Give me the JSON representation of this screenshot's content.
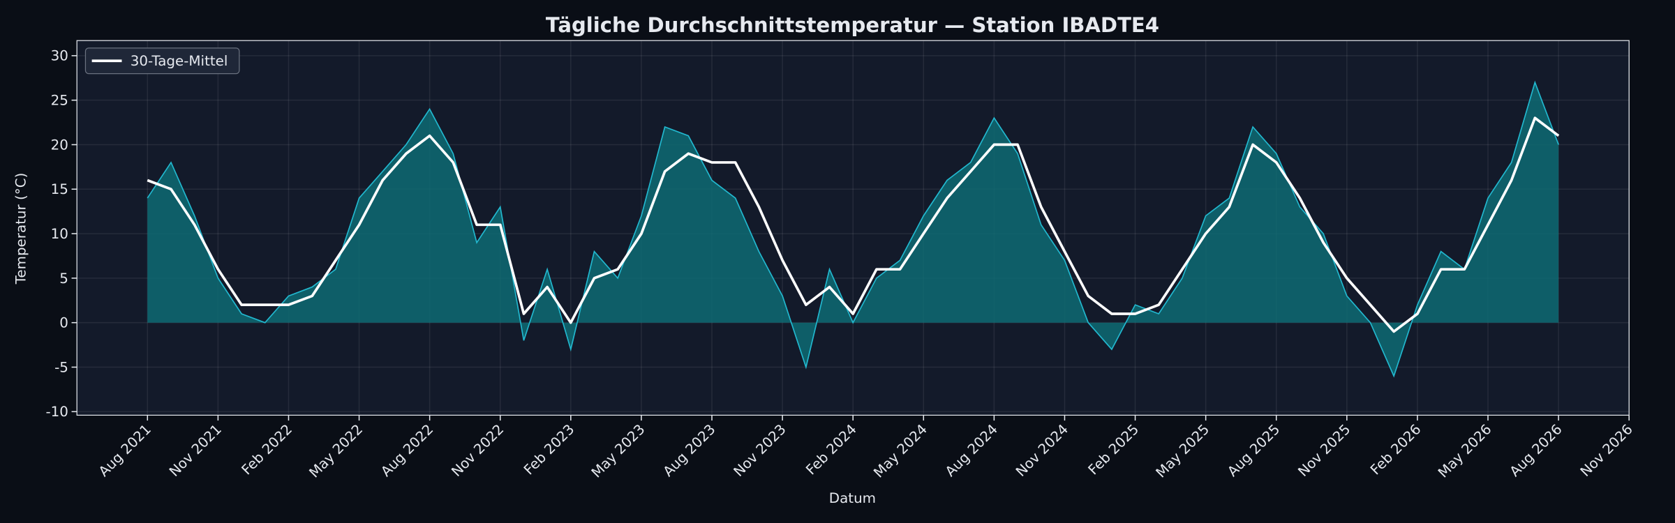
{
  "chart_data": {
    "type": "line",
    "title": "Tägliche Durchschnittstemperatur — Station IBADTE4",
    "xlabel": "Datum",
    "ylabel": "Temperatur (°C)",
    "x": [
      "2021-08",
      "2021-09",
      "2021-10",
      "2021-11",
      "2021-12",
      "2022-01",
      "2022-02",
      "2022-03",
      "2022-04",
      "2022-05",
      "2022-06",
      "2022-07",
      "2022-08",
      "2022-09",
      "2022-10",
      "2022-11",
      "2022-12",
      "2023-01",
      "2023-02",
      "2023-03",
      "2023-04",
      "2023-05",
      "2023-06",
      "2023-07",
      "2023-08",
      "2023-09",
      "2023-10",
      "2023-11",
      "2023-12",
      "2024-01",
      "2024-02",
      "2024-03",
      "2024-04",
      "2024-05",
      "2024-06",
      "2024-07",
      "2024-08",
      "2024-09",
      "2024-10",
      "2024-11",
      "2024-12",
      "2025-01",
      "2025-02",
      "2025-03",
      "2025-04",
      "2025-05",
      "2025-06",
      "2025-07",
      "2025-08",
      "2025-09",
      "2025-10",
      "2025-11",
      "2025-12",
      "2026-01",
      "2026-02",
      "2026-03",
      "2026-04",
      "2026-05",
      "2026-06",
      "2026-07",
      "2026-08"
    ],
    "daily": {
      "color": "#22b8cf",
      "fill": "#0e6b73",
      "values": [
        14,
        18,
        12,
        5,
        1,
        0,
        3,
        4,
        6,
        14,
        17,
        20,
        24,
        19,
        9,
        13,
        -2,
        6,
        -3,
        8,
        5,
        12,
        22,
        21,
        16,
        14,
        8,
        3,
        -5,
        6,
        0,
        5,
        7,
        12,
        16,
        18,
        23,
        19,
        11,
        7,
        0,
        -3,
        2,
        1,
        5,
        12,
        14,
        22,
        19,
        13,
        10,
        3,
        0,
        -6,
        2,
        8,
        6,
        14,
        18,
        27,
        20
      ]
    },
    "series": [
      {
        "name": "30-Tage-Mittel",
        "color": "#ffffff",
        "values": [
          16,
          15,
          11,
          6,
          2,
          2,
          2,
          3,
          7,
          11,
          16,
          19,
          21,
          18,
          11,
          11,
          1,
          4,
          0,
          5,
          6,
          10,
          17,
          19,
          18,
          18,
          13,
          7,
          2,
          4,
          1,
          6,
          6,
          10,
          14,
          17,
          20,
          20,
          13,
          8,
          3,
          1,
          1,
          2,
          6,
          10,
          13,
          20,
          18,
          14,
          9,
          5,
          2,
          -1,
          1,
          6,
          6,
          11,
          16,
          23,
          21
        ]
      }
    ],
    "xlim": [
      "2021-05",
      "2026-11"
    ],
    "xticks": [
      {
        "value": "2021-08",
        "label": "Aug 2021"
      },
      {
        "value": "2021-11",
        "label": "Nov 2021"
      },
      {
        "value": "2022-02",
        "label": "Feb 2022"
      },
      {
        "value": "2022-05",
        "label": "May 2022"
      },
      {
        "value": "2022-08",
        "label": "Aug 2022"
      },
      {
        "value": "2022-11",
        "label": "Nov 2022"
      },
      {
        "value": "2023-02",
        "label": "Feb 2023"
      },
      {
        "value": "2023-05",
        "label": "May 2023"
      },
      {
        "value": "2023-08",
        "label": "Aug 2023"
      },
      {
        "value": "2023-11",
        "label": "Nov 2023"
      },
      {
        "value": "2024-02",
        "label": "Feb 2024"
      },
      {
        "value": "2024-05",
        "label": "May 2024"
      },
      {
        "value": "2024-08",
        "label": "Aug 2024"
      },
      {
        "value": "2024-11",
        "label": "Nov 2024"
      },
      {
        "value": "2025-02",
        "label": "Feb 2025"
      },
      {
        "value": "2025-05",
        "label": "May 2025"
      },
      {
        "value": "2025-08",
        "label": "Aug 2025"
      },
      {
        "value": "2025-11",
        "label": "Nov 2025"
      },
      {
        "value": "2026-02",
        "label": "Feb 2026"
      },
      {
        "value": "2026-05",
        "label": "May 2026"
      },
      {
        "value": "2026-08",
        "label": "Aug 2026"
      },
      {
        "value": "2026-11",
        "label": "Nov 2026"
      }
    ],
    "ylim": [
      -10.4,
      31.7
    ],
    "yticks": [
      -10,
      -5,
      0,
      5,
      10,
      15,
      20,
      25,
      30
    ],
    "grid": true,
    "legend": "upper left"
  }
}
